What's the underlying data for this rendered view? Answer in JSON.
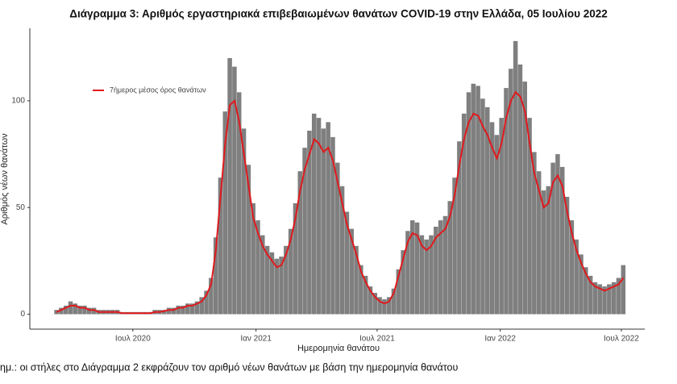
{
  "chart_data": {
    "type": "bar-line",
    "title": "Διάγραμμα 3: Αριθμός εργαστηριακά επιβεβαιωμένων θανάτων COVID-19 στην Ελλάδα, 05 Ιουλίου 2022",
    "x_label": "Ημερομηνία θανάτου",
    "y_label": "Αριθμός νέων θανάτων",
    "note": "ημ.: οι στήλες στο Διάγραμμα 2 εκφράζουν τον αριθμό νέων θανάτων με βάση την ημερομηνία θανάτου",
    "x_start": "2020-03-09",
    "x_step_days": 7,
    "xlim": [
      "2020-01-29",
      "2022-08-05"
    ],
    "xticks": [
      {
        "value": "2020-07-01",
        "label": "Ιουλ 2020"
      },
      {
        "value": "2021-01-01",
        "label": "Ιαν 2021"
      },
      {
        "value": "2021-07-01",
        "label": "Ιουλ 2021"
      },
      {
        "value": "2022-01-01",
        "label": "Ιαν 2022"
      },
      {
        "value": "2022-07-01",
        "label": "Ιουλ 2022"
      }
    ],
    "ylim": [
      -7,
      134
    ],
    "yticks": [
      0,
      50,
      100
    ],
    "grid": false,
    "legend": "top-left",
    "series": [
      {
        "type": "bar",
        "color": "#7f7f7f",
        "values": [
          2,
          3,
          4,
          6,
          5,
          4,
          4,
          3,
          3,
          2,
          2,
          2,
          2,
          2,
          1,
          1,
          1,
          1,
          1,
          1,
          1,
          2,
          2,
          2,
          3,
          3,
          4,
          4,
          5,
          5,
          6,
          8,
          11,
          17,
          36,
          64,
          95,
          120,
          116,
          104,
          87,
          70,
          52,
          44,
          37,
          32,
          29,
          26,
          27,
          32,
          40,
          52,
          67,
          78,
          86,
          94,
          92,
          87,
          90,
          83,
          71,
          60,
          48,
          40,
          32,
          23,
          18,
          13,
          10,
          8,
          7,
          8,
          12,
          21,
          30,
          39,
          44,
          43,
          37,
          35,
          37,
          41,
          44,
          46,
          53,
          64,
          81,
          94,
          104,
          108,
          107,
          101,
          97,
          90,
          84,
          92,
          106,
          115,
          128,
          117,
          109,
          92,
          76,
          67,
          58,
          60,
          71,
          75,
          69,
          55,
          44,
          35,
          28,
          22,
          18,
          15,
          14,
          13,
          14,
          15,
          17,
          23
        ]
      },
      {
        "type": "line",
        "name": "7ήμερος μέσος όρος θανάτων",
        "color": "#e0191d",
        "values": [
          1,
          2,
          3,
          4,
          4,
          3,
          3,
          2,
          2,
          1,
          1,
          1,
          1,
          1,
          0.5,
          0.5,
          0.5,
          0.5,
          0.5,
          0.5,
          0.5,
          1,
          1,
          1.5,
          2,
          2,
          3,
          3,
          4,
          4,
          5,
          6,
          9,
          14,
          30,
          55,
          80,
          98,
          100,
          90,
          75,
          60,
          45,
          38,
          32,
          28,
          25,
          22,
          23,
          28,
          35,
          45,
          58,
          68,
          75,
          82,
          80,
          76,
          78,
          72,
          62,
          52,
          42,
          35,
          28,
          20,
          15,
          11,
          8,
          6,
          5,
          6,
          10,
          18,
          26,
          34,
          38,
          37,
          32,
          30,
          32,
          36,
          38,
          40,
          46,
          56,
          70,
          82,
          90,
          94,
          93,
          88,
          84,
          78,
          73,
          80,
          92,
          100,
          104,
          102,
          95,
          80,
          66,
          58,
          50,
          52,
          62,
          65,
          60,
          48,
          38,
          30,
          24,
          19,
          15,
          13,
          12,
          11,
          12,
          13,
          14,
          17
        ]
      }
    ]
  }
}
